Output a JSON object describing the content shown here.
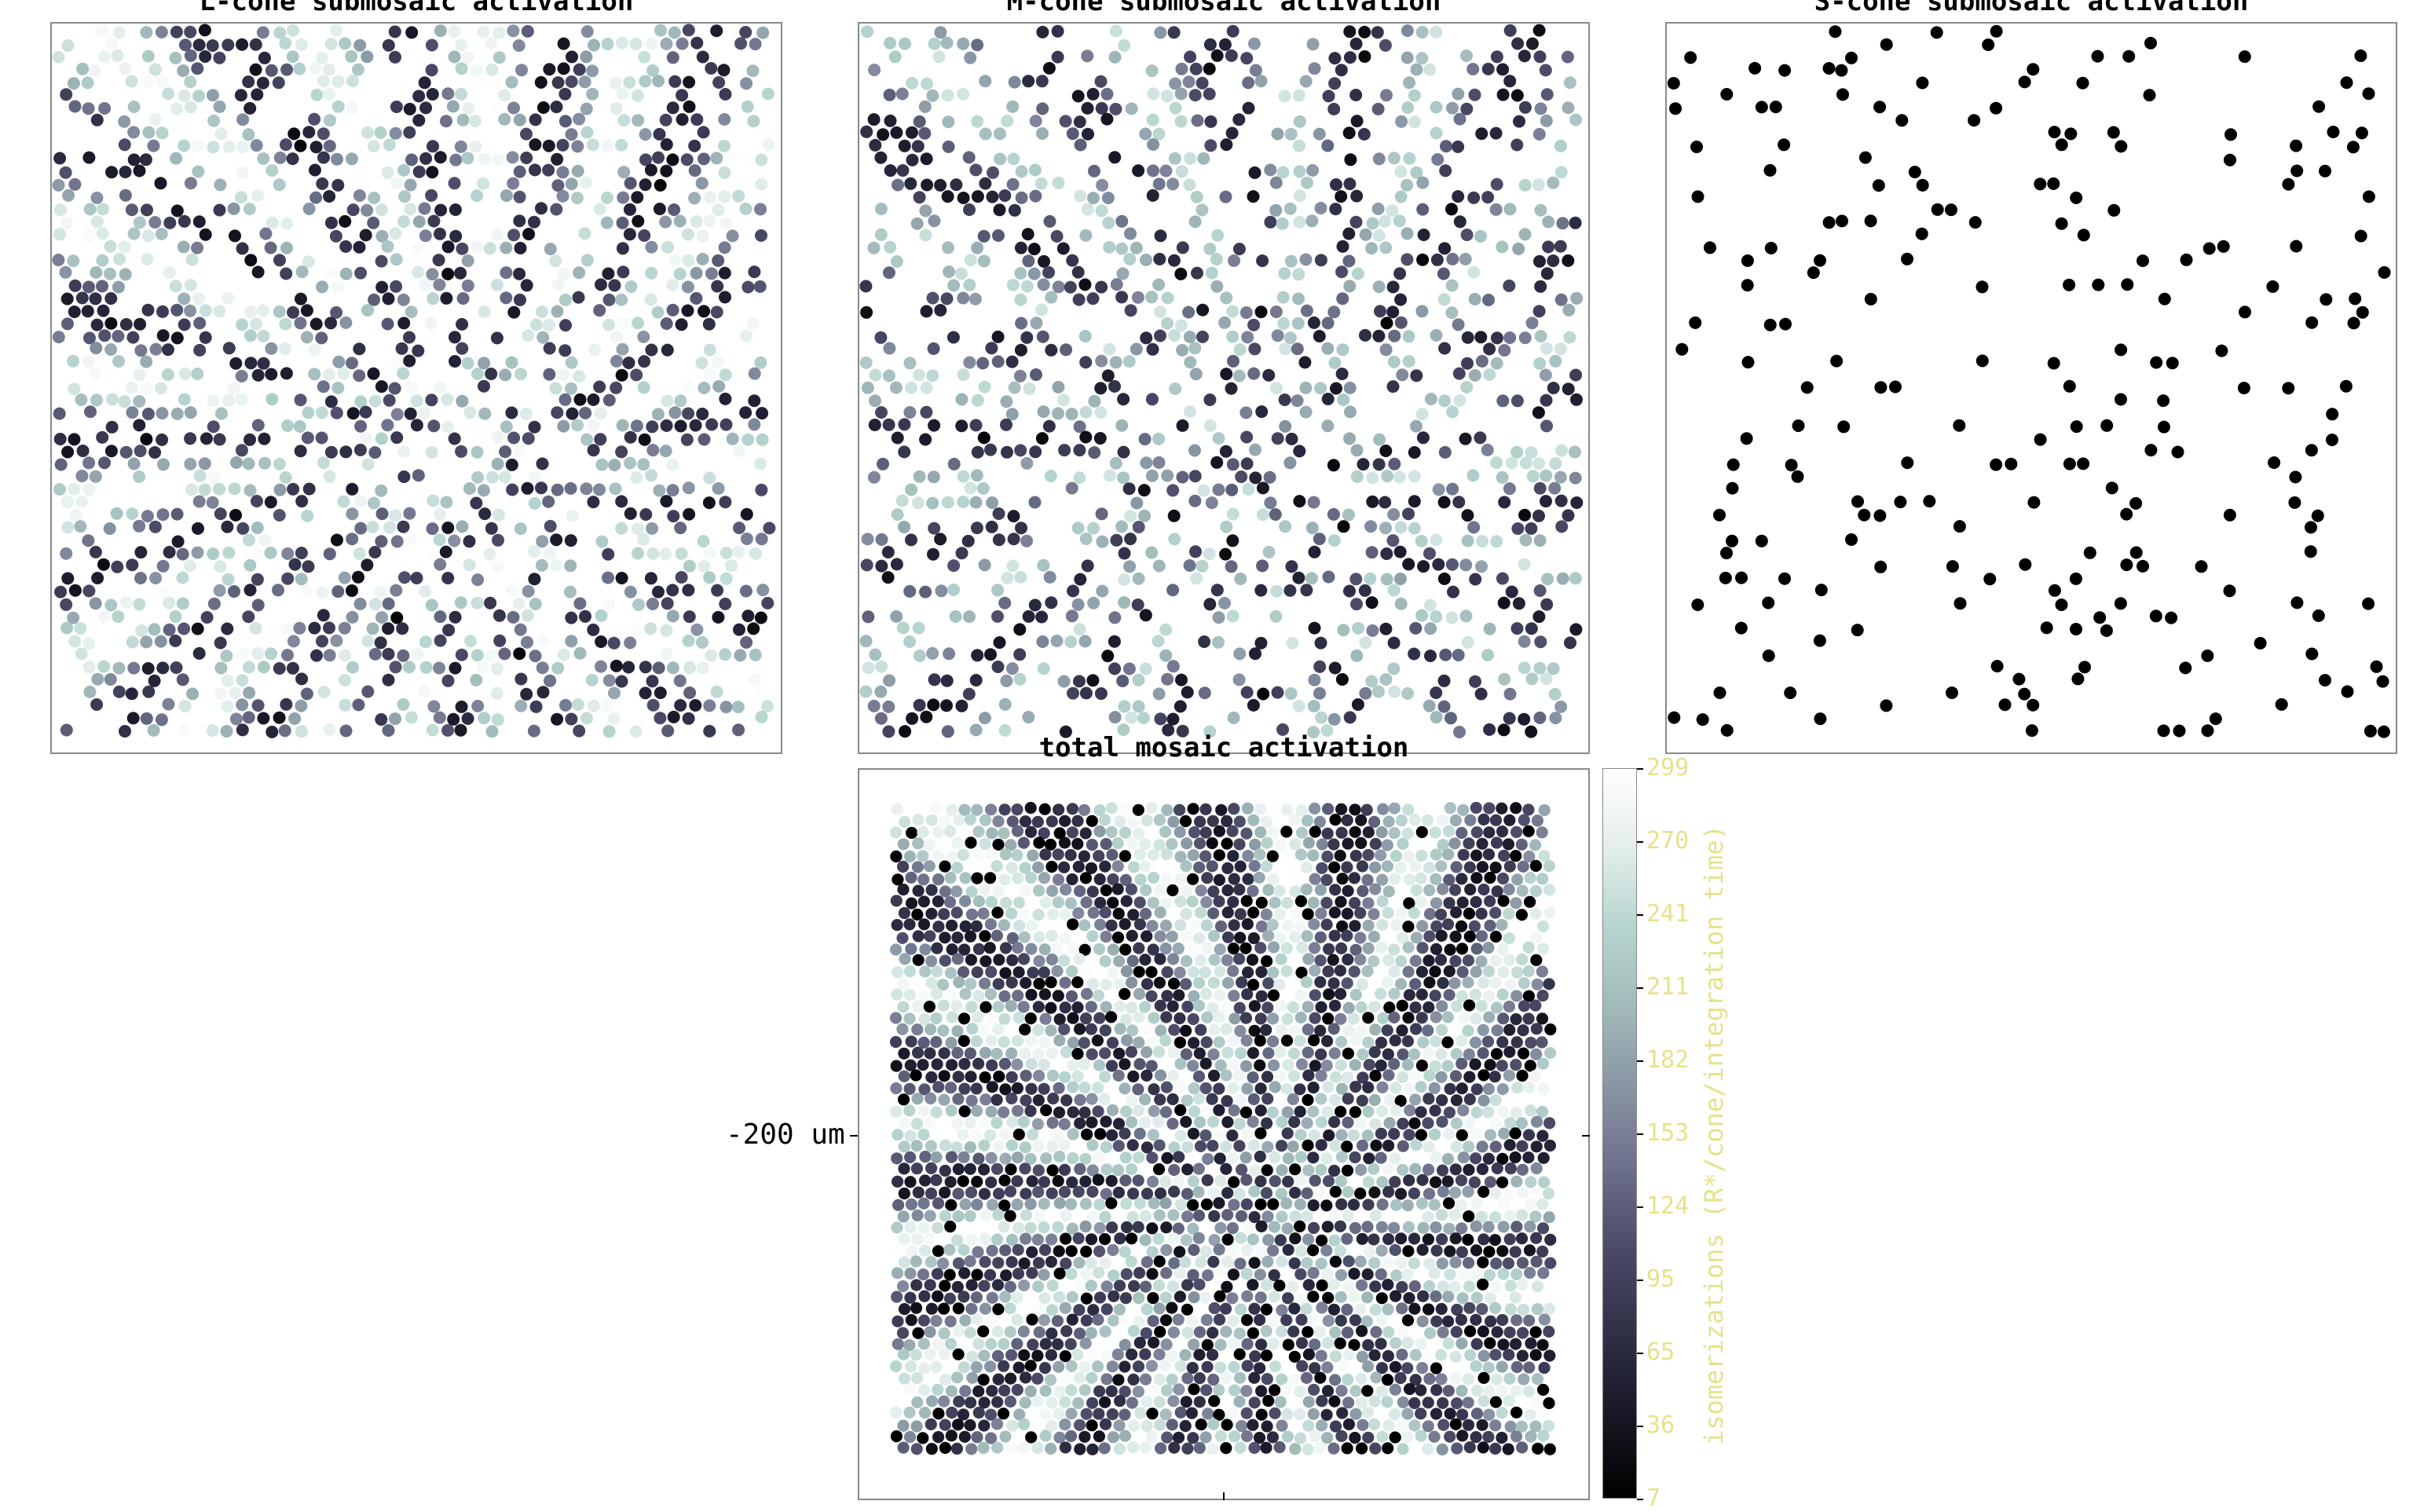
{
  "chart_data": [
    {
      "type": "heatmap",
      "title": "L-cone submosaic activation",
      "dot_color": "shaded"
    },
    {
      "type": "heatmap",
      "title": "M-cone submosaic activation",
      "dot_color": "shaded"
    },
    {
      "type": "heatmap",
      "title": "S-cone submosaic activation",
      "dot_color": "#000000"
    },
    {
      "type": "heatmap",
      "title": "total mosaic activation",
      "ylabel": "-200 um",
      "colorbar": {
        "label": "isomerizations (R*/cone/integration time)",
        "ticks": [
          "299",
          "270",
          "241",
          "211",
          "182",
          "153",
          "124",
          "95",
          "65",
          "36",
          "7"
        ],
        "range": [
          7,
          299
        ],
        "colors": [
          "#000000",
          "#4a4a66",
          "#9fb6b8",
          "#ffffff"
        ]
      }
    }
  ]
}
